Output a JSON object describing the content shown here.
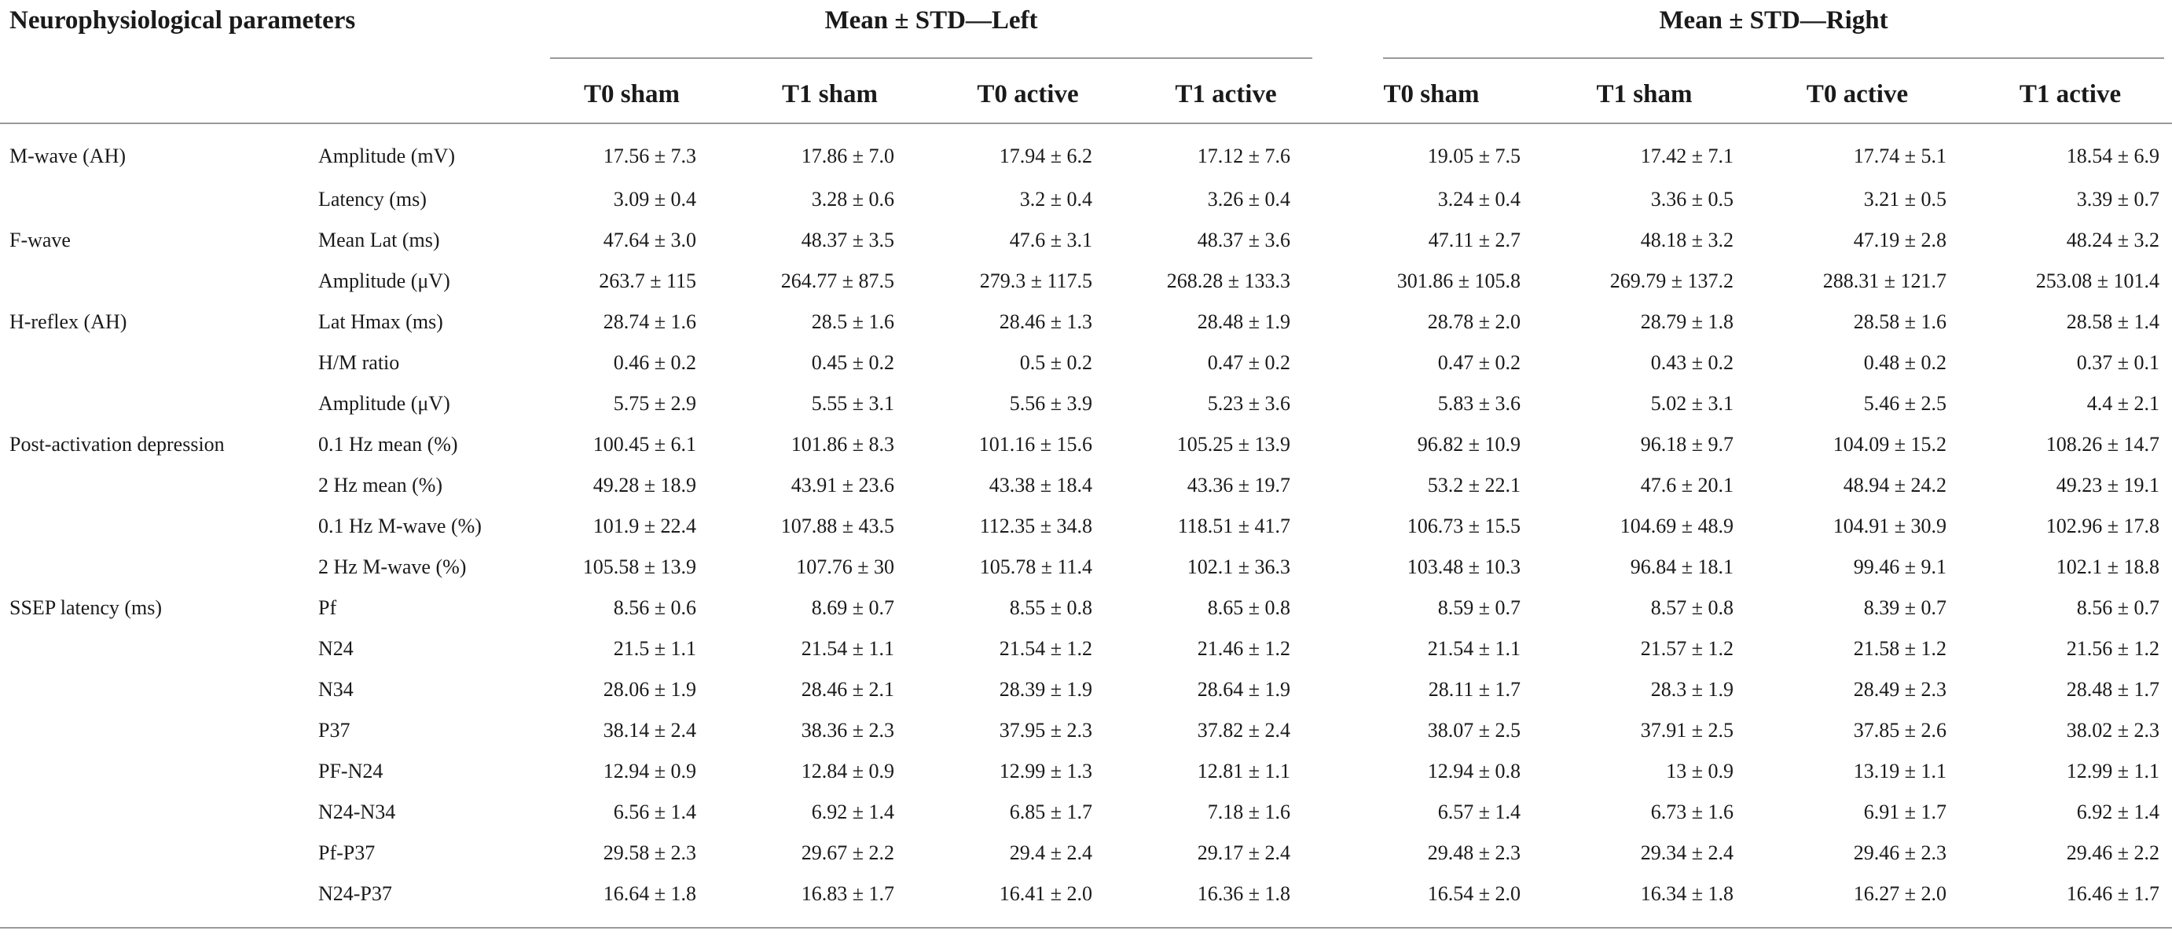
{
  "title": "Neurophysiological parameters",
  "groups": {
    "left": "Mean ± STD—Left",
    "right": "Mean ± STD—Right"
  },
  "columns": [
    "T0 sham",
    "T1 sham",
    "T0 active",
    "T1 active",
    "T0 sham",
    "T1 sham",
    "T0 active",
    "T1 active"
  ],
  "rows": [
    {
      "param": "M-wave (AH)",
      "measure": "Amplitude (mV)",
      "values": [
        "17.56 ± 7.3",
        "17.86 ± 7.0",
        "17.94 ± 6.2",
        "17.12 ± 7.6",
        "19.05 ± 7.5",
        "17.42 ± 7.1",
        "17.74 ± 5.1",
        "18.54 ± 6.9"
      ]
    },
    {
      "param": "",
      "measure": "Latency (ms)",
      "values": [
        "3.09 ± 0.4",
        "3.28 ± 0.6",
        "3.2 ± 0.4",
        "3.26 ± 0.4",
        "3.24 ± 0.4",
        "3.36 ± 0.5",
        "3.21 ± 0.5",
        "3.39 ± 0.7"
      ]
    },
    {
      "param": "F-wave",
      "measure": "Mean Lat (ms)",
      "values": [
        "47.64 ± 3.0",
        "48.37 ± 3.5",
        "47.6 ± 3.1",
        "48.37 ± 3.6",
        "47.11 ± 2.7",
        "48.18 ± 3.2",
        "47.19 ± 2.8",
        "48.24 ± 3.2"
      ]
    },
    {
      "param": "",
      "measure": "Amplitude (μV)",
      "values": [
        "263.7 ± 115",
        "264.77 ± 87.5",
        "279.3 ± 117.5",
        "268.28 ± 133.3",
        "301.86 ± 105.8",
        "269.79 ± 137.2",
        "288.31 ± 121.7",
        "253.08 ± 101.4"
      ]
    },
    {
      "param": "H-reflex (AH)",
      "measure": "Lat Hmax (ms)",
      "values": [
        "28.74 ± 1.6",
        "28.5 ± 1.6",
        "28.46 ± 1.3",
        "28.48 ± 1.9",
        "28.78 ± 2.0",
        "28.79 ± 1.8",
        "28.58 ± 1.6",
        "28.58 ± 1.4"
      ]
    },
    {
      "param": "",
      "measure": "H/M ratio",
      "values": [
        "0.46 ± 0.2",
        "0.45 ± 0.2",
        "0.5 ± 0.2",
        "0.47 ± 0.2",
        "0.47 ± 0.2",
        "0.43 ± 0.2",
        "0.48 ± 0.2",
        "0.37 ± 0.1"
      ]
    },
    {
      "param": "",
      "measure": "Amplitude (μV)",
      "values": [
        "5.75 ± 2.9",
        "5.55 ± 3.1",
        "5.56 ± 3.9",
        "5.23 ± 3.6",
        "5.83 ± 3.6",
        "5.02 ± 3.1",
        "5.46 ± 2.5",
        "4.4 ± 2.1"
      ]
    },
    {
      "param": "Post-activation depression",
      "measure": "0.1 Hz mean (%)",
      "values": [
        "100.45 ± 6.1",
        "101.86 ± 8.3",
        "101.16 ± 15.6",
        "105.25 ± 13.9",
        "96.82 ± 10.9",
        "96.18 ± 9.7",
        "104.09 ± 15.2",
        "108.26 ± 14.7"
      ]
    },
    {
      "param": "",
      "measure": "2 Hz mean (%)",
      "values": [
        "49.28 ± 18.9",
        "43.91 ± 23.6",
        "43.38 ± 18.4",
        "43.36 ± 19.7",
        "53.2 ± 22.1",
        "47.6 ± 20.1",
        "48.94 ± 24.2",
        "49.23 ± 19.1"
      ]
    },
    {
      "param": "",
      "measure": "0.1 Hz M-wave (%)",
      "values": [
        "101.9 ± 22.4",
        "107.88 ± 43.5",
        "112.35 ± 34.8",
        "118.51 ± 41.7",
        "106.73 ± 15.5",
        "104.69 ± 48.9",
        "104.91 ± 30.9",
        "102.96 ± 17.8"
      ]
    },
    {
      "param": "",
      "measure": "2 Hz M-wave (%)",
      "values": [
        "105.58 ± 13.9",
        "107.76 ± 30",
        "105.78 ± 11.4",
        "102.1 ± 36.3",
        "103.48 ± 10.3",
        "96.84 ± 18.1",
        "99.46 ± 9.1",
        "102.1 ± 18.8"
      ]
    },
    {
      "param": "SSEP latency (ms)",
      "measure": "Pf",
      "values": [
        "8.56 ± 0.6",
        "8.69 ± 0.7",
        "8.55 ± 0.8",
        "8.65 ± 0.8",
        "8.59 ± 0.7",
        "8.57 ± 0.8",
        "8.39 ± 0.7",
        "8.56 ± 0.7"
      ]
    },
    {
      "param": "",
      "measure": "N24",
      "values": [
        "21.5 ± 1.1",
        "21.54 ± 1.1",
        "21.54 ± 1.2",
        "21.46 ± 1.2",
        "21.54 ± 1.1",
        "21.57 ± 1.2",
        "21.58 ± 1.2",
        "21.56 ± 1.2"
      ]
    },
    {
      "param": "",
      "measure": "N34",
      "values": [
        "28.06 ± 1.9",
        "28.46 ± 2.1",
        "28.39 ± 1.9",
        "28.64 ± 1.9",
        "28.11 ± 1.7",
        "28.3 ± 1.9",
        "28.49 ± 2.3",
        "28.48 ± 1.7"
      ]
    },
    {
      "param": "",
      "measure": "P37",
      "values": [
        "38.14 ± 2.4",
        "38.36 ± 2.3",
        "37.95 ± 2.3",
        "37.82 ± 2.4",
        "38.07 ± 2.5",
        "37.91 ± 2.5",
        "37.85 ± 2.6",
        "38.02 ± 2.3"
      ]
    },
    {
      "param": "",
      "measure": "PF-N24",
      "values": [
        "12.94 ± 0.9",
        "12.84 ± 0.9",
        "12.99 ± 1.3",
        "12.81 ± 1.1",
        "12.94 ± 0.8",
        "13 ± 0.9",
        "13.19 ± 1.1",
        "12.99 ± 1.1"
      ]
    },
    {
      "param": "",
      "measure": "N24-N34",
      "values": [
        "6.56 ± 1.4",
        "6.92 ± 1.4",
        "6.85 ± 1.7",
        "7.18 ± 1.6",
        "6.57 ± 1.4",
        "6.73 ± 1.6",
        "6.91 ± 1.7",
        "6.92 ± 1.4"
      ]
    },
    {
      "param": "",
      "measure": "Pf-P37",
      "values": [
        "29.58 ± 2.3",
        "29.67 ± 2.2",
        "29.4 ± 2.4",
        "29.17 ± 2.4",
        "29.48 ± 2.3",
        "29.34 ± 2.4",
        "29.46 ± 2.3",
        "29.46 ± 2.2"
      ]
    },
    {
      "param": "",
      "measure": "N24-P37",
      "values": [
        "16.64 ± 1.8",
        "16.83 ± 1.7",
        "16.41 ± 2.0",
        "16.36 ± 1.8",
        "16.54 ± 2.0",
        "16.34 ± 1.8",
        "16.27 ± 2.0",
        "16.46 ± 1.7"
      ]
    }
  ]
}
